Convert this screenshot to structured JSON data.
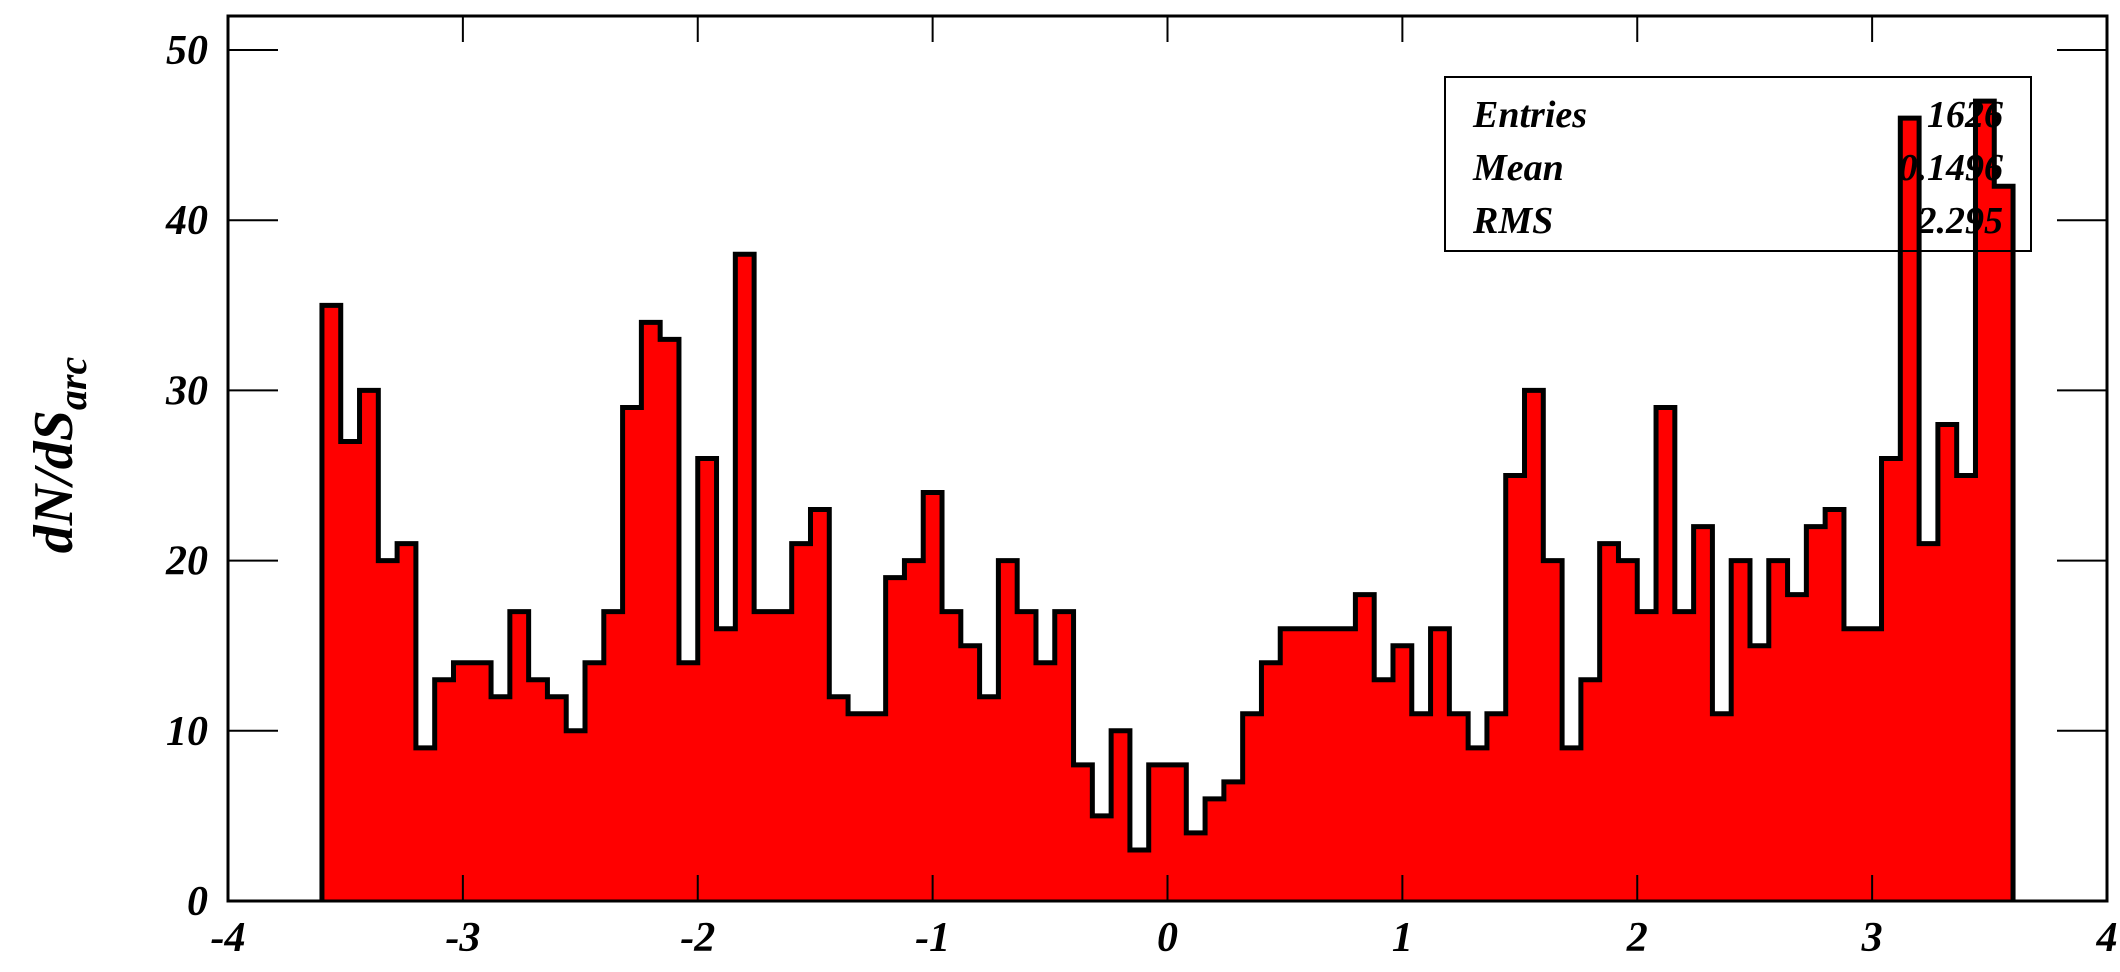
{
  "chart_data": {
    "type": "histogram",
    "y_label": "dN/dS",
    "y_label_subscript": "arc",
    "bins": [
      -3.6,
      -3.52,
      -3.44,
      -3.36,
      -3.28,
      -3.2,
      -3.12,
      -3.04,
      -2.96,
      -2.88,
      -2.8,
      -2.72,
      -2.64,
      -2.56,
      -2.48,
      -2.4,
      -2.32,
      -2.24,
      -2.16,
      -2.08,
      -2,
      -1.92,
      -1.84,
      -1.76,
      -1.68,
      -1.6,
      -1.52,
      -1.44,
      -1.36,
      -1.28,
      -1.2,
      -1.12,
      -1.04,
      -0.96,
      -0.88,
      -0.8,
      -0.72,
      -0.64,
      -0.56,
      -0.48,
      -0.4,
      -0.32,
      -0.24,
      -0.16,
      -0.08,
      0,
      0.08,
      0.16,
      0.24,
      0.32,
      0.4,
      0.48,
      0.56,
      0.64,
      0.72,
      0.8,
      0.88,
      0.96,
      1.04,
      1.12,
      1.2,
      1.28,
      1.36,
      1.44,
      1.52,
      1.6,
      1.68,
      1.76,
      1.84,
      1.92,
      2,
      2.08,
      2.16,
      2.24,
      2.32,
      2.4,
      2.48,
      2.56,
      2.64,
      2.72,
      2.8,
      2.88,
      2.96,
      3.04,
      3.12,
      3.2,
      3.28,
      3.36,
      3.44,
      3.52,
      3.6
    ],
    "values": [
      35,
      27,
      30,
      20,
      21,
      9,
      13,
      14,
      14,
      12,
      17,
      13,
      12,
      10,
      14,
      17,
      29,
      34,
      33,
      14,
      26,
      16,
      38,
      17,
      17,
      21,
      23,
      12,
      11,
      11,
      19,
      20,
      24,
      17,
      15,
      12,
      20,
      17,
      14,
      17,
      8,
      5,
      10,
      3,
      8,
      8,
      4,
      6,
      7,
      11,
      14,
      16,
      16,
      16,
      16,
      18,
      13,
      15,
      11,
      16,
      11,
      9,
      11,
      25,
      30,
      20,
      9,
      13,
      21,
      20,
      17,
      29,
      17,
      22,
      11,
      20,
      15,
      20,
      18,
      22,
      23,
      16,
      16,
      26,
      46,
      21,
      28,
      25,
      47,
      42
    ],
    "color": "#ff0000",
    "xlim": [
      -4,
      4
    ],
    "xticks": [
      -4,
      -3,
      -2,
      -1,
      0,
      1,
      2,
      3,
      4
    ],
    "ylim": [
      0,
      52
    ],
    "yticks": [
      0,
      10,
      20,
      30,
      40,
      50
    ],
    "stats": {
      "labels": [
        "Entries",
        "Mean",
        "RMS"
      ],
      "values": [
        1626,
        0.1496,
        2.295
      ]
    }
  }
}
